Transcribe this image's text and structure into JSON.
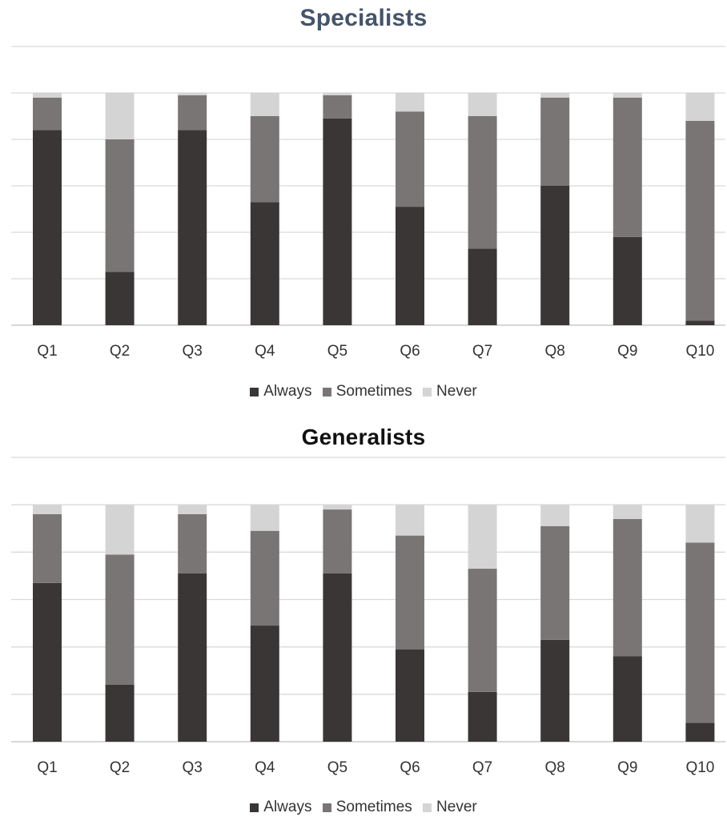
{
  "chart_data": [
    {
      "type": "bar",
      "stacked": true,
      "title": "Specialists",
      "categories": [
        "Q1",
        "Q2",
        "Q3",
        "Q4",
        "Q5",
        "Q6",
        "Q7",
        "Q8",
        "Q9",
        "Q10"
      ],
      "series": [
        {
          "name": "Always",
          "color": "#3a3636",
          "values": [
            84,
            23,
            84,
            53,
            89,
            51,
            33,
            60,
            38,
            2
          ]
        },
        {
          "name": "Sometimes",
          "color": "#7a7575",
          "values": [
            14,
            57,
            15,
            37,
            10,
            41,
            57,
            38,
            60,
            86
          ]
        },
        {
          "name": "Never",
          "color": "#d4d4d4",
          "values": [
            2,
            20,
            1,
            10,
            1,
            8,
            10,
            2,
            2,
            12
          ]
        }
      ],
      "ylim": [
        0,
        120
      ],
      "grid": true,
      "legend": "bottom"
    },
    {
      "type": "bar",
      "stacked": true,
      "title": "Generalists",
      "categories": [
        "Q1",
        "Q2",
        "Q3",
        "Q4",
        "Q5",
        "Q6",
        "Q7",
        "Q8",
        "Q9",
        "Q10"
      ],
      "series": [
        {
          "name": "Always",
          "color": "#3a3636",
          "values": [
            67,
            24,
            71,
            49,
            71,
            39,
            21,
            43,
            36,
            8
          ]
        },
        {
          "name": "Sometimes",
          "color": "#7a7575",
          "values": [
            29,
            55,
            25,
            40,
            27,
            48,
            52,
            48,
            58,
            76
          ]
        },
        {
          "name": "Never",
          "color": "#d4d4d4",
          "values": [
            4,
            21,
            4,
            11,
            2,
            13,
            27,
            9,
            6,
            16
          ]
        }
      ],
      "ylim": [
        0,
        120
      ],
      "grid": true,
      "legend": "bottom"
    }
  ]
}
